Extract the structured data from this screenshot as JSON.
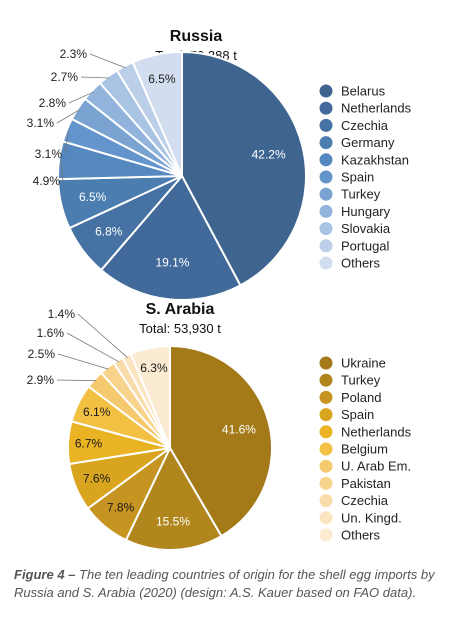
{
  "chart_data": [
    {
      "type": "pie",
      "title": "Russia",
      "subtitle": "Total: 79,388 t",
      "categories": [
        "Belarus",
        "Netherlands",
        "Czechia",
        "Germany",
        "Kazakhstan",
        "Spain",
        "Turkey",
        "Hungary",
        "Slovakia",
        "Portugal",
        "Others"
      ],
      "values": [
        42.2,
        19.1,
        6.8,
        6.5,
        4.9,
        3.1,
        3.1,
        2.8,
        2.7,
        2.3,
        6.5
      ],
      "labels": [
        "42.2%",
        "19.1%",
        "6.8%",
        "6.5%",
        "4.9%",
        "3.1%",
        "3.1%",
        "2.8%",
        "2.7%",
        "2.3%",
        "6.5%"
      ],
      "colors": [
        "#3e6590",
        "#41699a",
        "#4672a3",
        "#4b7db0",
        "#5688c0",
        "#6494cc",
        "#7aa3d2",
        "#92b4dc",
        "#a8c3e3",
        "#bccfe8",
        "#d2ddef"
      ],
      "legend": "right"
    },
    {
      "type": "pie",
      "title": "S. Arabia",
      "subtitle": "Total: 53,930 t",
      "categories": [
        "Ukraine",
        "Turkey",
        "Poland",
        "Spain",
        "Netherlands",
        "Belgium",
        "U. Arab Em.",
        "Pakistan",
        "Czechia",
        "Un. Kingd.",
        "Others"
      ],
      "values": [
        41.6,
        15.5,
        7.8,
        7.6,
        6.7,
        6.1,
        2.9,
        2.5,
        1.6,
        1.4,
        6.3
      ],
      "labels": [
        "41.6%",
        "15.5%",
        "7.8%",
        "7.6%",
        "6.7%",
        "6.1%",
        "2.9%",
        "2.5%",
        "1.6%",
        "1.4%",
        "6.3%"
      ],
      "colors": [
        "#a47a18",
        "#b0861d",
        "#c69421",
        "#daa51e",
        "#e9b324",
        "#f2c043",
        "#f5ca6e",
        "#f8d38c",
        "#f9dcaa",
        "#fbe5c1",
        "#fcebd3"
      ],
      "legend": "right"
    }
  ],
  "caption": {
    "prefix": "Figure 4 –",
    "text": " The ten leading countries of origin for the shell egg imports by Russia and S. Arabia (2020) (design: A.S. Kauer based on FAO data)."
  }
}
